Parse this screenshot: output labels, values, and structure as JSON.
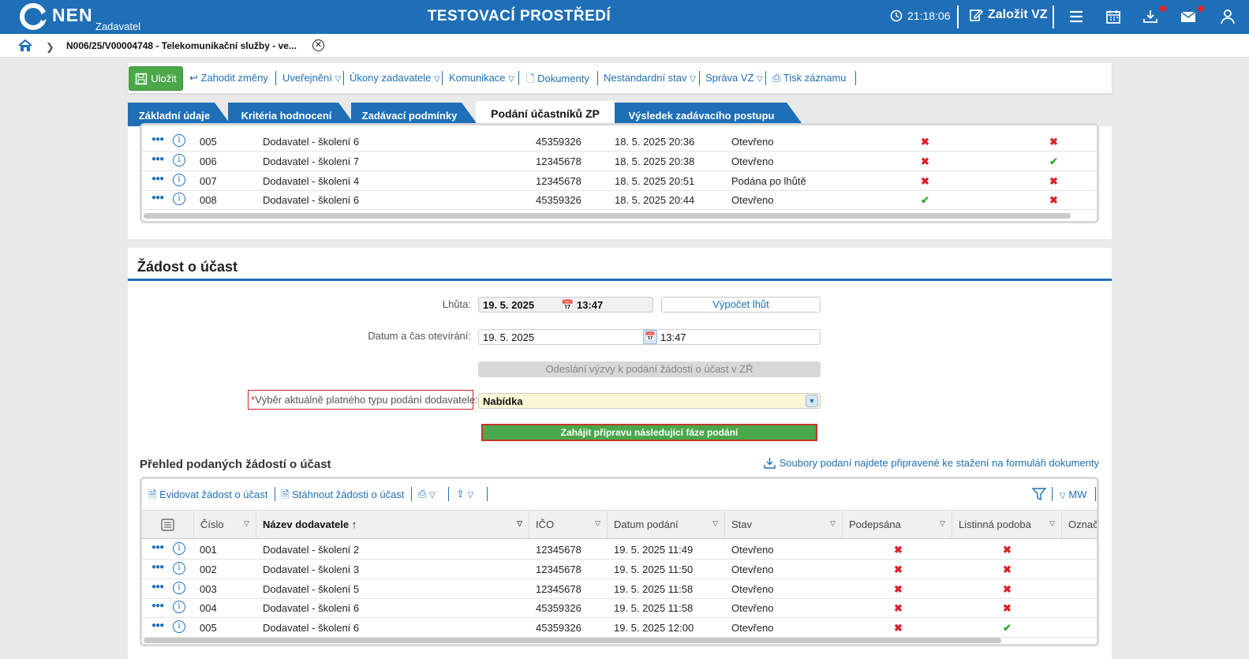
{
  "topbar": {
    "logo_text": "NEN",
    "logo_sub": "Zadavatel",
    "env_title": "TESTOVACÍ PROSTŘEDÍ",
    "time": "21:18:06",
    "create_label": "Založit VZ"
  },
  "breadcrumb": {
    "text": "N006/25/V00004748 - Telekomunikační služby - ve..."
  },
  "toolbar": {
    "save": "Uložit",
    "discard": "Zahodit změny",
    "publish": "Uveřejnění",
    "actions": "Úkony zadavatele",
    "communication": "Komunikace",
    "documents": "Dokumenty",
    "nonstandard": "Nestandardní stav",
    "admin": "Správa VZ",
    "print": "Tisk záznamu"
  },
  "tabs": [
    {
      "label": "Základní údaje"
    },
    {
      "label": "Kritéria hodnocení"
    },
    {
      "label": "Zadávací podmínky"
    },
    {
      "label": "Podání účastníků ZP"
    },
    {
      "label": "Výsledek zadávacího postupu"
    }
  ],
  "top_grid": {
    "rows": [
      {
        "num": "005",
        "name": "Dodavatel - školení 6",
        "ico": "45359326",
        "date": "18. 5. 2025 20:36",
        "state": "Otevřeno",
        "signed": false,
        "paper": false
      },
      {
        "num": "006",
        "name": "Dodavatel - školení 7",
        "ico": "12345678",
        "date": "18. 5. 2025 20:38",
        "state": "Otevřeno",
        "signed": false,
        "paper": true
      },
      {
        "num": "007",
        "name": "Dodavatel - školení 4",
        "ico": "12345678",
        "date": "18. 5. 2025 20:51",
        "state": "Podána po lhůtě",
        "signed": false,
        "paper": false
      },
      {
        "num": "008",
        "name": "Dodavatel - školení 6",
        "ico": "45359326",
        "date": "18. 5. 2025 20:44",
        "state": "Otevřeno",
        "signed": true,
        "paper": false
      }
    ]
  },
  "request": {
    "title": "Žádost o účast",
    "deadline_label": "Lhůta:",
    "deadline_date": "19. 5. 2025",
    "deadline_time": "13:47",
    "calc_button": "Výpočet lhůt",
    "open_label": "Datum a čas otevírání:",
    "open_date": "19. 5. 2025",
    "open_time": "13:47",
    "send_invite_button": "Odeslání výzvy k podání žádosti o účast v ZŘ",
    "type_label": "Výběr aktuálně platného typu podání dodavatele:",
    "required_mark": "*",
    "type_value": "Nabídka",
    "start_next_button": "Zahájit přípravu následující fáze podání"
  },
  "overview": {
    "title": "Přehled podaných žádostí o účast",
    "download_link": "Soubory podaní najdete připravené ke stažení na formuláři dokumenty",
    "register": "Evidovat žádost o účast",
    "download": "Stáhnout žádosti o účast",
    "mw": "MW",
    "columns": [
      "Číslo",
      "Název dodavatele",
      "IČO",
      "Datum podání",
      "Stav",
      "Podepsána",
      "Listinná podoba",
      "Označ"
    ],
    "rows": [
      {
        "num": "001",
        "name": "Dodavatel - školení 2",
        "ico": "12345678",
        "date": "19. 5. 2025 11:49",
        "state": "Otevřeno",
        "signed": false,
        "paper": false
      },
      {
        "num": "002",
        "name": "Dodavatel - školení 3",
        "ico": "12345678",
        "date": "19. 5. 2025 11:50",
        "state": "Otevřeno",
        "signed": false,
        "paper": false
      },
      {
        "num": "003",
        "name": "Dodavatel - školení 5",
        "ico": "12345678",
        "date": "19. 5. 2025 11:58",
        "state": "Otevřeno",
        "signed": false,
        "paper": false
      },
      {
        "num": "004",
        "name": "Dodavatel - školení 6",
        "ico": "45359326",
        "date": "19. 5. 2025 11:58",
        "state": "Otevřeno",
        "signed": false,
        "paper": false
      },
      {
        "num": "005",
        "name": "Dodavatel - školení 6",
        "ico": "45359326",
        "date": "19. 5. 2025 12:00",
        "state": "Otevřeno",
        "signed": false,
        "paper": true
      }
    ]
  },
  "colors": {
    "primary": "#1e6fb7",
    "save_green": "#4aa84a",
    "error": "#d9222a",
    "ok": "#2fa82f",
    "select_bg": "#fcf7d5"
  }
}
